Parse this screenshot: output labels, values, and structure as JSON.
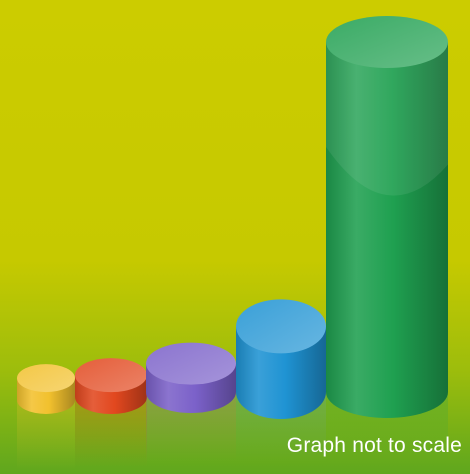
{
  "footnote": "Graph not to scale",
  "colors": {
    "background_top": "#cccc00",
    "background_bottom": "#5fa71e"
  },
  "chart_data": {
    "type": "bar",
    "style": "3d-cylinder",
    "categories": [
      "",
      "",
      "",
      "",
      ""
    ],
    "values": [
      1,
      1,
      1.3,
      3,
      16
    ],
    "colors": [
      "#f2c12e",
      "#e2481f",
      "#7b61c9",
      "#1f93d3",
      "#1fa050"
    ],
    "axes_visible": false,
    "grid": false,
    "legend": "none"
  }
}
